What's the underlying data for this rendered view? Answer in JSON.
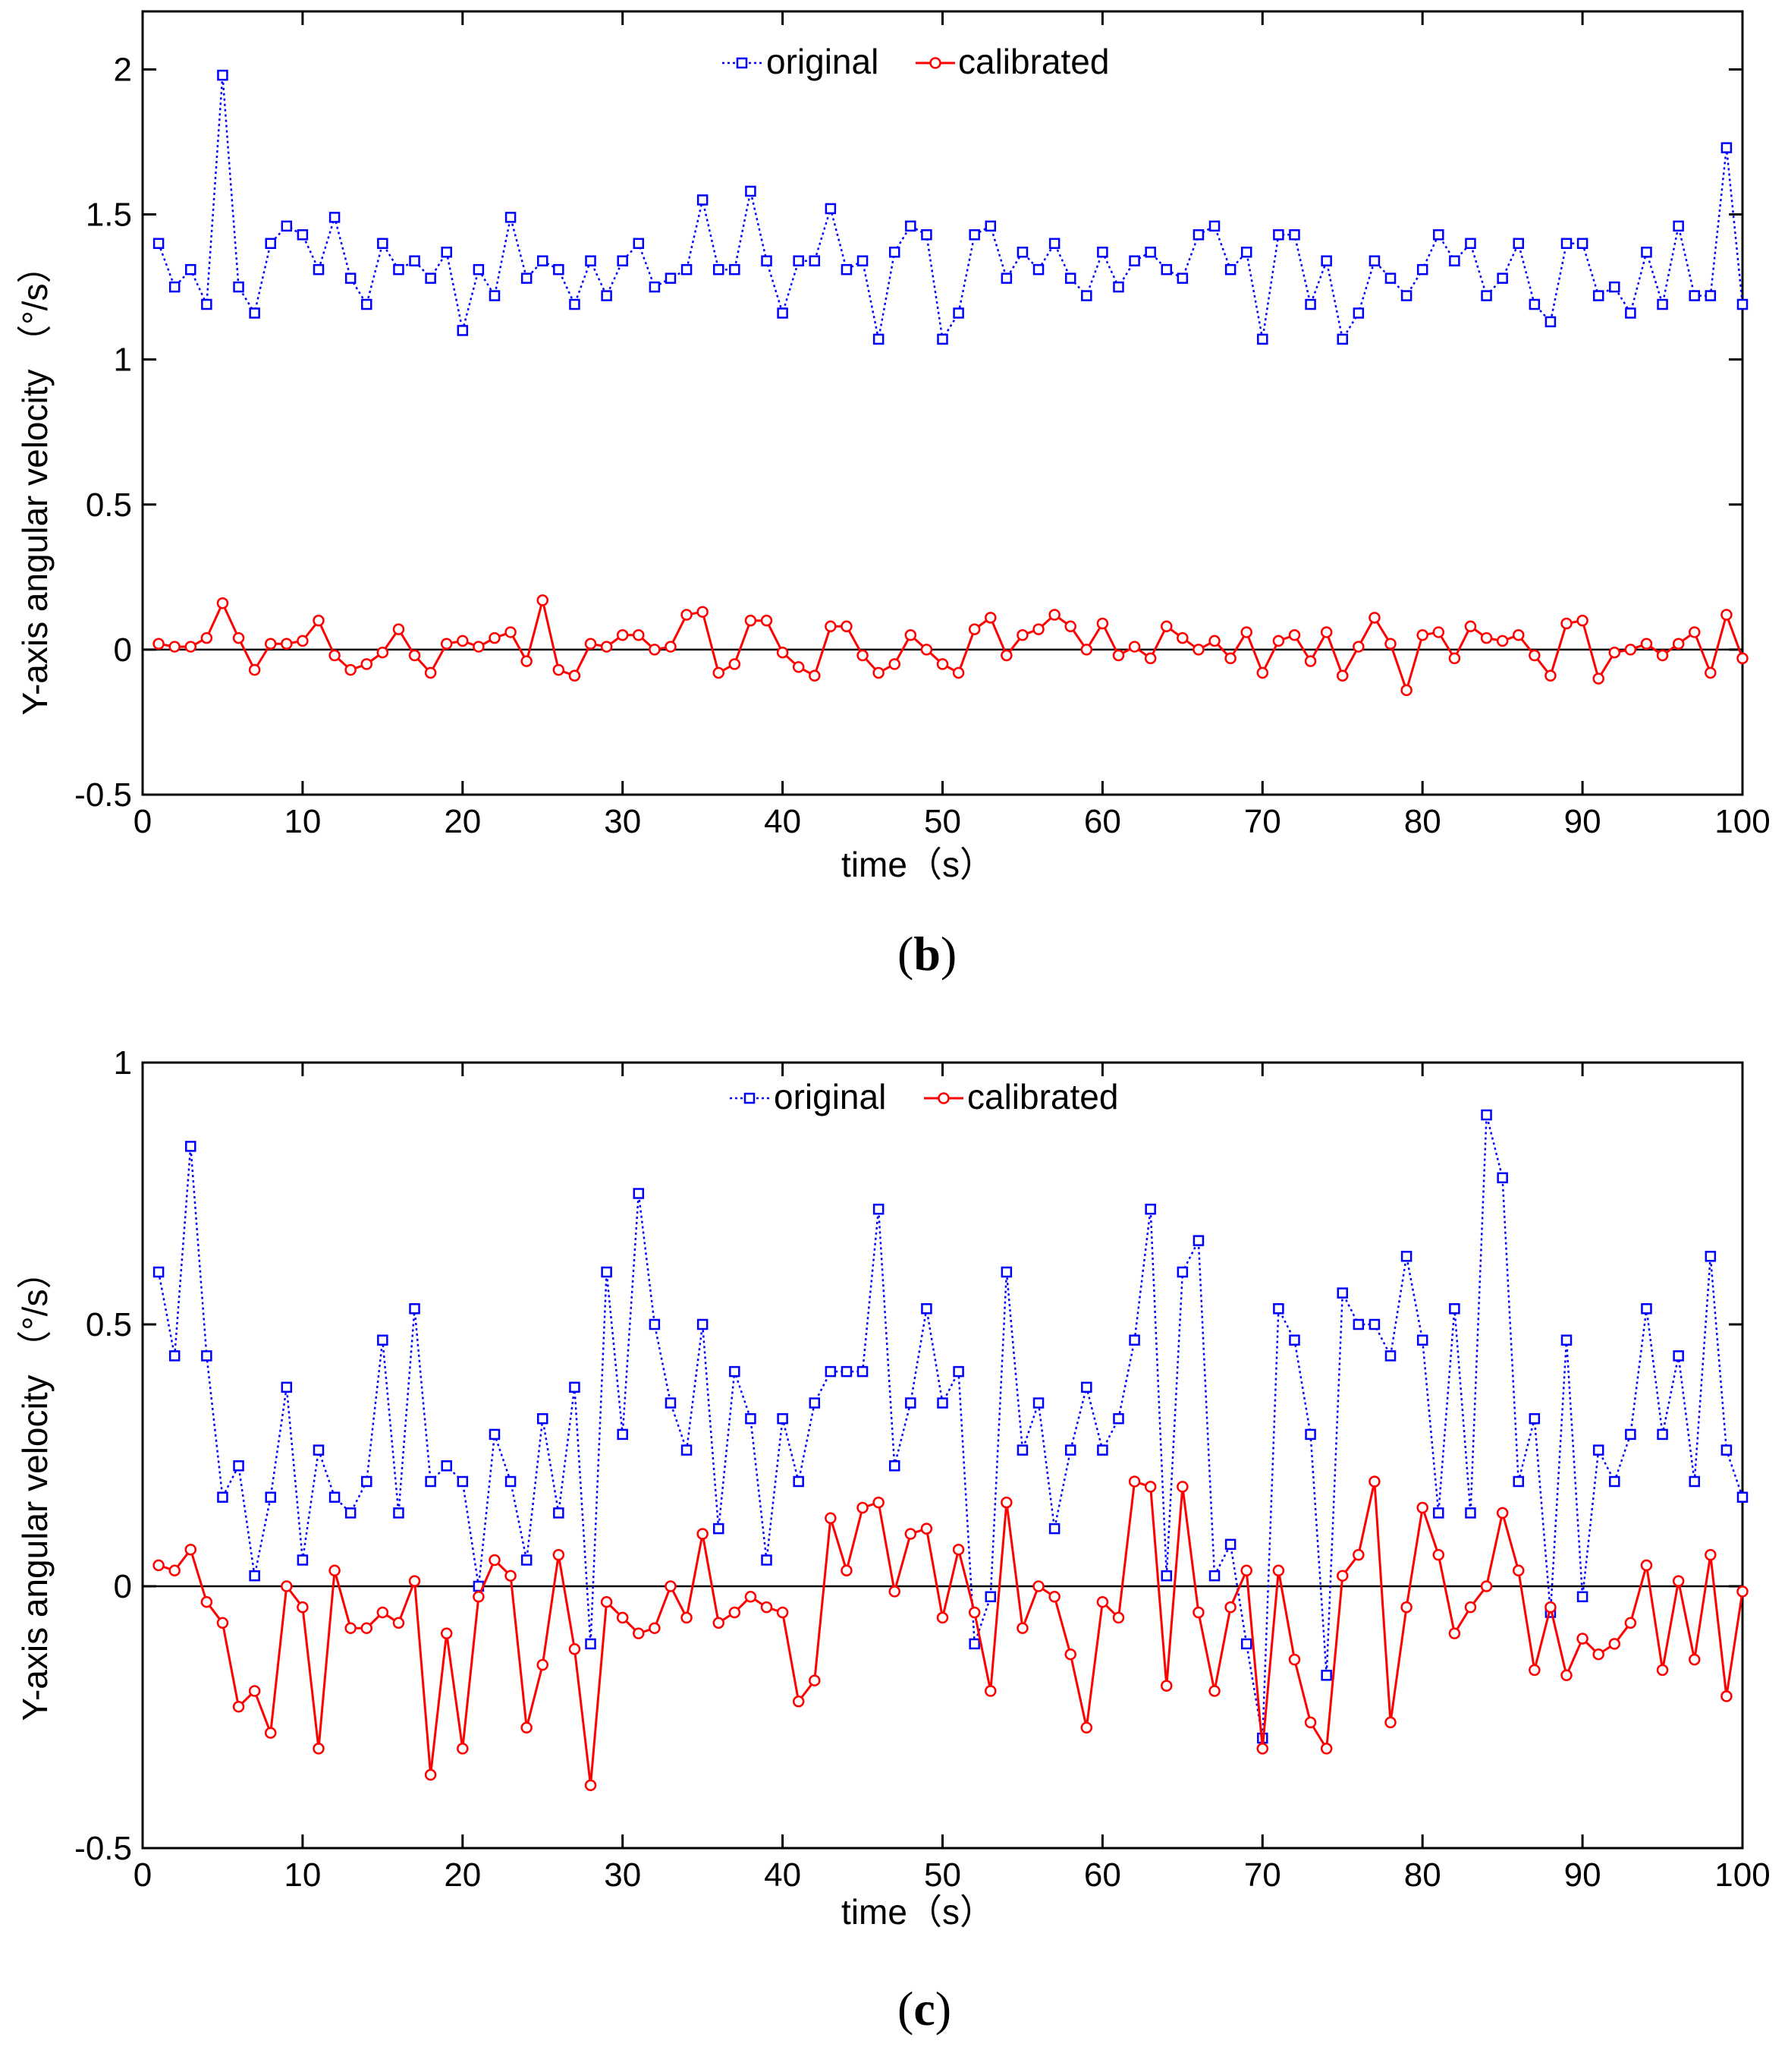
{
  "chart_data": [
    {
      "type": "line",
      "panel_label": "b",
      "xlabel": "time（s）",
      "ylabel": "Y-axis angular velocity （°/s）",
      "xlim": [
        0,
        100
      ],
      "ylim": [
        -0.5,
        2.2
      ],
      "xticks": [
        0,
        10,
        20,
        30,
        40,
        50,
        60,
        70,
        80,
        90,
        100
      ],
      "yticks": [
        -0.5,
        0,
        0.5,
        1,
        1.5,
        2
      ],
      "ytick_labels": [
        "-0.5",
        "0",
        "0.5",
        "1",
        "1.5",
        "2"
      ],
      "zero_line": true,
      "legend": {
        "placement": "top-center",
        "entries": [
          "original",
          "calibrated"
        ]
      },
      "x": [
        1,
        2,
        3,
        4,
        5,
        6,
        7,
        8,
        9,
        10,
        11,
        12,
        13,
        14,
        15,
        16,
        17,
        18,
        19,
        20,
        21,
        22,
        23,
        24,
        25,
        26,
        27,
        28,
        29,
        30,
        31,
        32,
        33,
        34,
        35,
        36,
        37,
        38,
        39,
        40,
        41,
        42,
        43,
        44,
        45,
        46,
        47,
        48,
        49,
        50,
        51,
        52,
        53,
        54,
        55,
        56,
        57,
        58,
        59,
        60,
        61,
        62,
        63,
        64,
        65,
        66,
        67,
        68,
        69,
        70,
        71,
        72,
        73,
        74,
        75,
        76,
        77,
        78,
        79,
        80,
        81,
        82,
        83,
        84,
        85,
        86,
        87,
        88,
        89,
        90,
        91,
        92,
        93,
        94,
        95,
        96,
        97,
        98,
        99,
        100
      ],
      "series": [
        {
          "name": "original",
          "color": "#0000ff",
          "style": "dotted",
          "marker": "square",
          "values": [
            1.4,
            1.25,
            1.31,
            1.19,
            1.98,
            1.25,
            1.16,
            1.4,
            1.46,
            1.43,
            1.31,
            1.49,
            1.28,
            1.19,
            1.4,
            1.31,
            1.34,
            1.28,
            1.37,
            1.1,
            1.31,
            1.22,
            1.49,
            1.28,
            1.34,
            1.31,
            1.19,
            1.34,
            1.22,
            1.34,
            1.4,
            1.25,
            1.28,
            1.31,
            1.55,
            1.31,
            1.31,
            1.58,
            1.34,
            1.16,
            1.34,
            1.34,
            1.52,
            1.31,
            1.34,
            1.07,
            1.37,
            1.46,
            1.43,
            1.07,
            1.16,
            1.43,
            1.46,
            1.28,
            1.37,
            1.31,
            1.4,
            1.28,
            1.22,
            1.37,
            1.25,
            1.34,
            1.37,
            1.31,
            1.28,
            1.43,
            1.46,
            1.31,
            1.37,
            1.07,
            1.43,
            1.43,
            1.19,
            1.34,
            1.07,
            1.16,
            1.34,
            1.28,
            1.22,
            1.31,
            1.43,
            1.34,
            1.4,
            1.22,
            1.28,
            1.4,
            1.19,
            1.13,
            1.4,
            1.4,
            1.22,
            1.25,
            1.16,
            1.37,
            1.19,
            1.46,
            1.22,
            1.22,
            1.73,
            1.19
          ]
        },
        {
          "name": "calibrated",
          "color": "#ff0000",
          "style": "solid",
          "marker": "circle",
          "values": [
            0.02,
            0.01,
            0.01,
            0.04,
            0.16,
            0.04,
            -0.07,
            0.02,
            0.02,
            0.03,
            0.1,
            -0.02,
            -0.07,
            -0.05,
            -0.01,
            0.07,
            -0.02,
            -0.08,
            0.02,
            0.03,
            0.01,
            0.04,
            0.06,
            -0.04,
            0.17,
            -0.07,
            -0.09,
            0.02,
            0.01,
            0.05,
            0.05,
            0.0,
            0.01,
            0.12,
            0.13,
            -0.08,
            -0.05,
            0.1,
            0.1,
            -0.01,
            -0.06,
            -0.09,
            0.08,
            0.08,
            -0.02,
            -0.08,
            -0.05,
            0.05,
            0.0,
            -0.05,
            -0.08,
            0.07,
            0.11,
            -0.02,
            0.05,
            0.07,
            0.12,
            0.08,
            0.0,
            0.09,
            -0.02,
            0.01,
            -0.03,
            0.08,
            0.04,
            0.0,
            0.03,
            -0.03,
            0.06,
            -0.08,
            0.03,
            0.05,
            -0.04,
            0.06,
            -0.09,
            0.01,
            0.11,
            0.02,
            -0.14,
            0.05,
            0.06,
            -0.03,
            0.08,
            0.04,
            0.03,
            0.05,
            -0.02,
            -0.09,
            0.09,
            0.1,
            -0.1,
            -0.01,
            0.0,
            0.02,
            -0.02,
            0.02,
            0.06,
            -0.08,
            0.12,
            -0.03
          ]
        }
      ]
    },
    {
      "type": "line",
      "panel_label": "c",
      "xlabel": "time（s）",
      "ylabel": "Y-axis angular velocity （°/s）",
      "xlim": [
        0,
        100
      ],
      "ylim": [
        -0.5,
        1.0
      ],
      "xticks": [
        0,
        10,
        20,
        30,
        40,
        50,
        60,
        70,
        80,
        90,
        100
      ],
      "yticks": [
        -0.5,
        0,
        0.5,
        1
      ],
      "ytick_labels": [
        "-0.5",
        "0",
        "0.5",
        "1"
      ],
      "zero_line": true,
      "legend": {
        "placement": "top-center",
        "entries": [
          "original",
          "calibrated"
        ]
      },
      "x": [
        1,
        2,
        3,
        4,
        5,
        6,
        7,
        8,
        9,
        10,
        11,
        12,
        13,
        14,
        15,
        16,
        17,
        18,
        19,
        20,
        21,
        22,
        23,
        24,
        25,
        26,
        27,
        28,
        29,
        30,
        31,
        32,
        33,
        34,
        35,
        36,
        37,
        38,
        39,
        40,
        41,
        42,
        43,
        44,
        45,
        46,
        47,
        48,
        49,
        50,
        51,
        52,
        53,
        54,
        55,
        56,
        57,
        58,
        59,
        60,
        61,
        62,
        63,
        64,
        65,
        66,
        67,
        68,
        69,
        70,
        71,
        72,
        73,
        74,
        75,
        76,
        77,
        78,
        79,
        80,
        81,
        82,
        83,
        84,
        85,
        86,
        87,
        88,
        89,
        90,
        91,
        92,
        93,
        94,
        95,
        96,
        97,
        98,
        99,
        100
      ],
      "series": [
        {
          "name": "original",
          "color": "#0000ff",
          "style": "dotted",
          "marker": "square",
          "values": [
            0.6,
            0.44,
            0.84,
            0.44,
            0.17,
            0.23,
            0.02,
            0.17,
            0.38,
            0.05,
            0.26,
            0.17,
            0.14,
            0.2,
            0.47,
            0.14,
            0.53,
            0.2,
            0.23,
            0.2,
            0.0,
            0.29,
            0.2,
            0.05,
            0.32,
            0.14,
            0.38,
            -0.11,
            0.6,
            0.29,
            0.75,
            0.5,
            0.35,
            0.26,
            0.5,
            0.11,
            0.41,
            0.32,
            0.05,
            0.32,
            0.2,
            0.35,
            0.41,
            0.41,
            0.41,
            0.72,
            0.23,
            0.35,
            0.53,
            0.35,
            0.41,
            -0.11,
            -0.02,
            0.6,
            0.26,
            0.35,
            0.11,
            0.26,
            0.38,
            0.26,
            0.32,
            0.47,
            0.72,
            0.02,
            0.6,
            0.66,
            0.02,
            0.08,
            -0.11,
            -0.29,
            0.53,
            0.47,
            0.29,
            -0.17,
            0.56,
            0.5,
            0.5,
            0.44,
            0.63,
            0.47,
            0.14,
            0.53,
            0.14,
            0.9,
            0.78,
            0.2,
            0.32,
            -0.05,
            0.47,
            -0.02,
            0.26,
            0.2,
            0.29,
            0.53,
            0.29,
            0.44,
            0.2,
            0.63,
            0.26,
            0.17
          ]
        },
        {
          "name": "calibrated",
          "color": "#ff0000",
          "style": "solid",
          "marker": "circle",
          "values": [
            0.04,
            0.03,
            0.07,
            -0.03,
            -0.07,
            -0.23,
            -0.2,
            -0.28,
            0.0,
            -0.04,
            -0.31,
            0.03,
            -0.08,
            -0.08,
            -0.05,
            -0.07,
            0.01,
            -0.36,
            -0.09,
            -0.31,
            -0.02,
            0.05,
            0.02,
            -0.27,
            -0.15,
            0.06,
            -0.12,
            -0.38,
            -0.03,
            -0.06,
            -0.09,
            -0.08,
            0.0,
            -0.06,
            0.1,
            -0.07,
            -0.05,
            -0.02,
            -0.04,
            -0.05,
            -0.22,
            -0.18,
            0.13,
            0.03,
            0.15,
            0.16,
            -0.01,
            0.1,
            0.11,
            -0.06,
            0.07,
            -0.05,
            -0.2,
            0.16,
            -0.08,
            0.0,
            -0.02,
            -0.13,
            -0.27,
            -0.03,
            -0.06,
            0.2,
            0.19,
            -0.19,
            0.19,
            -0.05,
            -0.2,
            -0.04,
            0.03,
            -0.31,
            0.03,
            -0.14,
            -0.26,
            -0.31,
            0.02,
            0.06,
            0.2,
            -0.26,
            -0.04,
            0.15,
            0.06,
            -0.09,
            -0.04,
            0.0,
            0.14,
            0.03,
            -0.16,
            -0.04,
            -0.17,
            -0.1,
            -0.13,
            -0.11,
            -0.07,
            0.04,
            -0.16,
            0.01,
            -0.14,
            0.06,
            -0.21,
            -0.01
          ]
        }
      ]
    }
  ]
}
